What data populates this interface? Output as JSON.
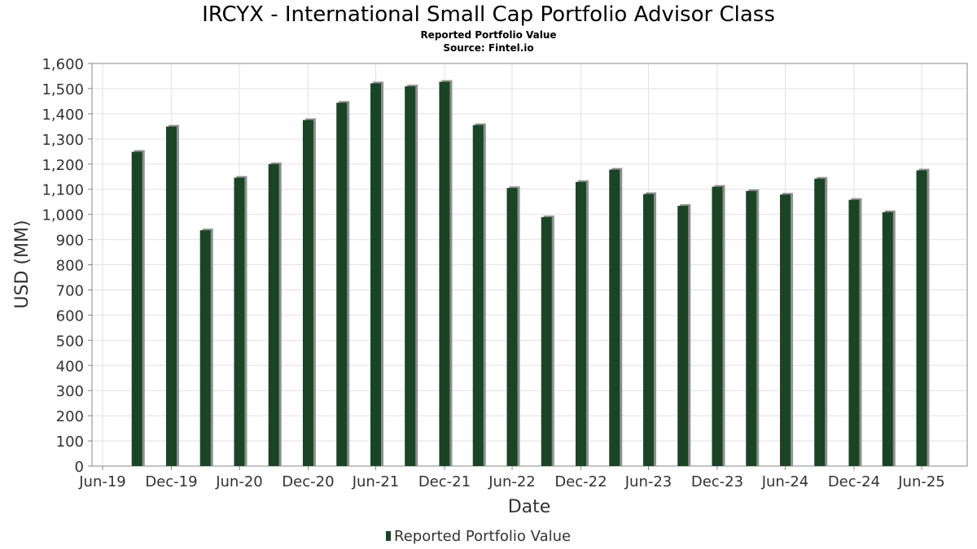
{
  "chart_data": {
    "type": "bar",
    "title": "IRCYX - International Small Cap Portfolio Advisor Class",
    "subtitle": "Reported Portfolio Value",
    "source": "Source: Fintel.io",
    "xlabel": "Date",
    "ylabel": "USD (MM)",
    "ylim": [
      0,
      1600
    ],
    "yticks": [
      "0",
      "100",
      "200",
      "300",
      "400",
      "500",
      "600",
      "700",
      "800",
      "900",
      "1,000",
      "1,100",
      "1,200",
      "1,300",
      "1,400",
      "1,500",
      "1,600"
    ],
    "xticks": [
      "Jun-19",
      "Dec-19",
      "Jun-20",
      "Dec-20",
      "Jun-21",
      "Dec-21",
      "Jun-22",
      "Dec-22",
      "Jun-23",
      "Dec-23",
      "Jun-24",
      "Dec-24",
      "Jun-25"
    ],
    "grid": true,
    "legend_position": "bottom",
    "series": [
      {
        "name": "Reported Portfolio Value",
        "color": "#1a4525",
        "x": [
          "2019-09-30",
          "2019-12-31",
          "2020-03-31",
          "2020-06-30",
          "2020-09-30",
          "2020-12-31",
          "2021-03-31",
          "2021-06-30",
          "2021-09-30",
          "2021-12-31",
          "2022-03-31",
          "2022-06-30",
          "2022-09-30",
          "2022-12-31",
          "2023-03-31",
          "2023-06-30",
          "2023-09-30",
          "2023-12-31",
          "2024-03-31",
          "2024-06-30",
          "2024-09-30",
          "2024-12-31",
          "2025-03-31",
          "2025-06-30"
        ],
        "values": [
          1249,
          1349,
          937,
          1146,
          1200,
          1375,
          1444,
          1521,
          1509,
          1527,
          1355,
          1105,
          989,
          1129,
          1178,
          1081,
          1034,
          1110,
          1093,
          1079,
          1142,
          1058,
          1009,
          1175
        ]
      }
    ]
  }
}
